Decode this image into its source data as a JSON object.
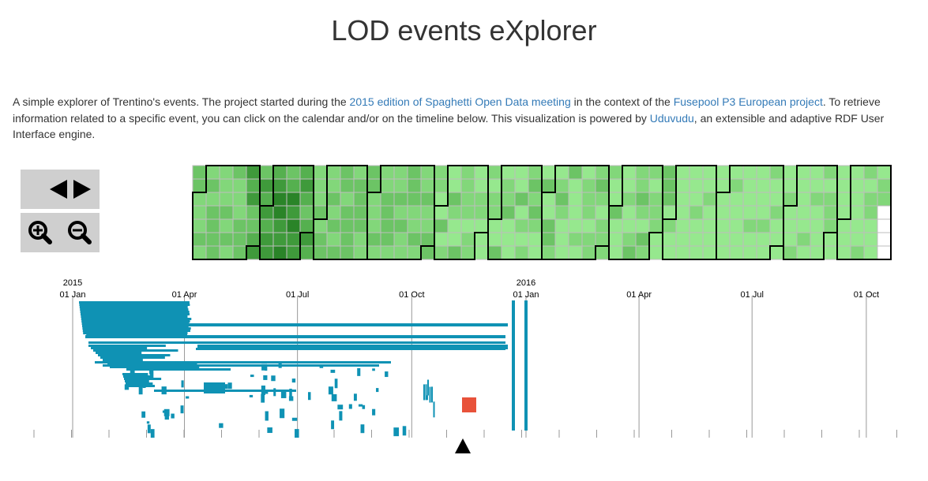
{
  "page": {
    "title": "LOD events eXplorer"
  },
  "intro": {
    "t1": "A simple explorer of Trentino's events. The project started during the ",
    "link1": "2015 edition of Spaghetti Open Data meeting",
    "t2": " in the context of the ",
    "link2": "Fusepool P3 European project",
    "t3": ". To retrieve information related to a specific event, you can click on the calendar and/or on the timeline below. This visualization is powered by ",
    "link3": "Uduvudu",
    "t4": ", an extensible and adaptive RDF User Interface engine."
  },
  "controls": {
    "prev": "arrow-left-icon",
    "next": "arrow-right-icon",
    "zoom_in": "zoom-in-icon",
    "zoom_out": "zoom-out-icon",
    "button_bg": "#cfcfcf"
  },
  "colors": {
    "event_bar": "#0f92b4",
    "selected_event": "#e8523a",
    "calendar_scale": [
      "#96e88e",
      "#82d77a",
      "#6cc465",
      "#55b04f",
      "#3f9a3b",
      "#2a8428"
    ],
    "calendar_empty": "#ffffff"
  },
  "calendar": {
    "weeks": 52,
    "days_per_week": 7,
    "first_week_offset": 3,
    "last_week_days": 3
  },
  "timeline": {
    "year_labels": [
      {
        "label": "2015",
        "date": "2015-01-01"
      },
      {
        "label": "2016",
        "date": "2016-01-01"
      }
    ],
    "month_labels": [
      {
        "label": "01 Jan",
        "date": "2015-01-01"
      },
      {
        "label": "01 Apr",
        "date": "2015-04-01"
      },
      {
        "label": "01 Jul",
        "date": "2015-07-01"
      },
      {
        "label": "01 Oct",
        "date": "2015-10-01"
      },
      {
        "label": "01 Jan",
        "date": "2016-01-01"
      },
      {
        "label": "01 Apr",
        "date": "2016-04-01"
      },
      {
        "label": "01 Jul",
        "date": "2016-07-01"
      },
      {
        "label": "01 Oct",
        "date": "2016-10-01"
      }
    ],
    "brush_marker": "triangle-up-icon"
  }
}
